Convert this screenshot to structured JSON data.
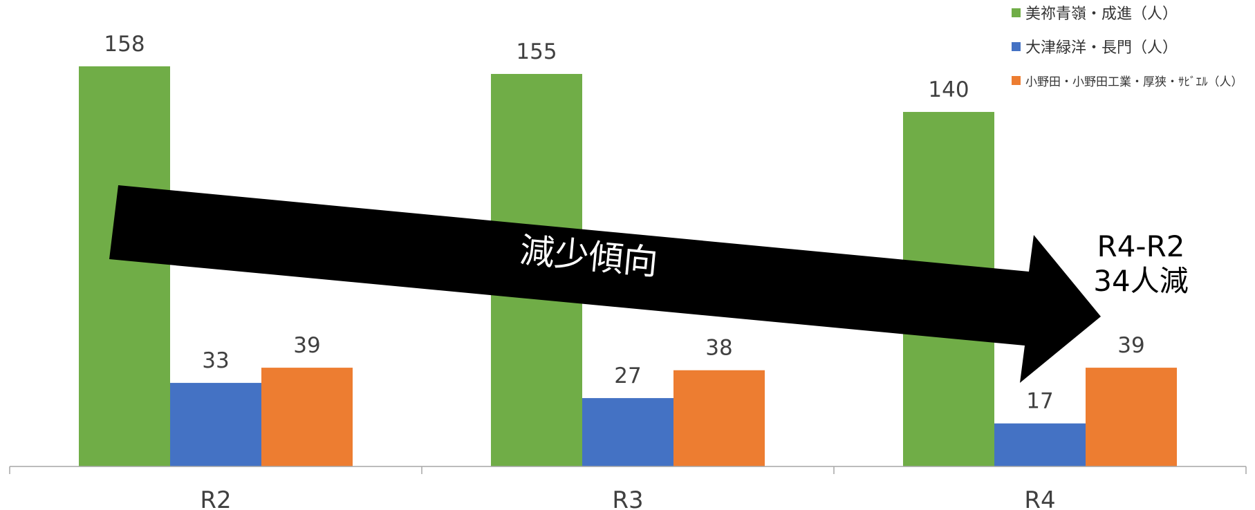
{
  "chart_data": {
    "type": "bar",
    "categories": [
      "R2",
      "R3",
      "R4"
    ],
    "series": [
      {
        "name": "美祢青嶺・成進（人）",
        "values": [
          158,
          155,
          140
        ],
        "color": "#70AD47"
      },
      {
        "name": "大津緑洋・長門（人）",
        "values": [
          33,
          27,
          17
        ],
        "color": "#4472C4"
      },
      {
        "name": "小野田・小野田工業・厚狭・ｻﾋﾞｴﾙ（人）",
        "values": [
          39,
          38,
          39
        ],
        "color": "#ED7D31"
      }
    ],
    "data_labels": true,
    "legend_position": "top-right",
    "y_axis_visible": false,
    "gridlines": false,
    "ylim": [
      0,
      165
    ]
  },
  "annotations": {
    "arrow_text": "減少傾向",
    "arrow_color": "#000000",
    "callout_line1": "R4-R2",
    "callout_line2": "34人減"
  }
}
